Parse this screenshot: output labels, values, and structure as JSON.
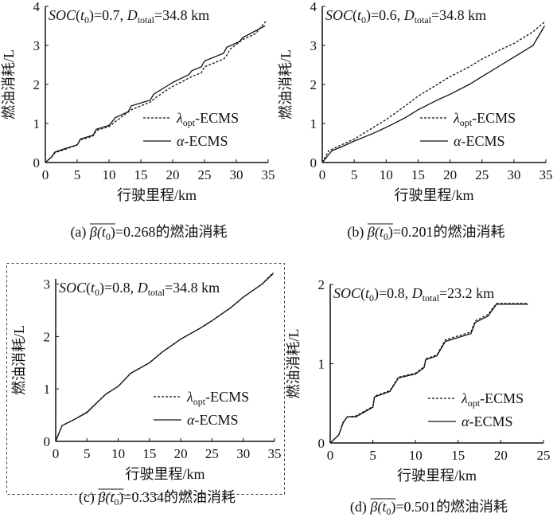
{
  "chart_data": [
    {
      "type": "line",
      "panel": "a",
      "xlabel": "行驶里程/km",
      "ylabel": "燃油消耗/L",
      "xlim": [
        0,
        35
      ],
      "ylim": [
        0,
        4
      ],
      "xticks": [
        "0",
        "5",
        "10",
        "15",
        "20",
        "25",
        "30",
        "35"
      ],
      "yticks": [
        "0",
        "1",
        "2",
        "3",
        "4"
      ],
      "grid": false,
      "legend": "center-right",
      "annotation": [
        "SOC",
        "(",
        "t",
        "0",
        ")=0.7, ",
        "D",
        "total",
        "=34.8 km"
      ],
      "caption": {
        "label": "(a) ",
        "beta": "β(",
        "t": "t",
        "sub": "0",
        "close": ")",
        "value": "=0.268的燃油消耗"
      },
      "series": [
        {
          "name_parts": [
            "λ",
            "opt",
            "-ECMS"
          ],
          "style": "dashed",
          "x": [
            0,
            1,
            1.5,
            3,
            5,
            5.5,
            7.5,
            8,
            10,
            11,
            13.5,
            16.5,
            17,
            19,
            20,
            23,
            24.5,
            25,
            28,
            28.5,
            29,
            31,
            33,
            34.8
          ],
          "y": [
            0,
            0.14,
            0.25,
            0.33,
            0.45,
            0.58,
            0.68,
            0.82,
            0.92,
            1.05,
            1.35,
            1.55,
            1.62,
            1.85,
            1.95,
            2.2,
            2.3,
            2.45,
            2.65,
            2.75,
            2.9,
            3.15,
            3.3,
            3.65
          ]
        },
        {
          "name_parts": [
            "α",
            "-ECMS"
          ],
          "style": "solid",
          "x": [
            0,
            1,
            1.5,
            3,
            5,
            5.5,
            7.5,
            8,
            10,
            11,
            13,
            13.5,
            16.5,
            17,
            19,
            20,
            22.5,
            23,
            24.5,
            25,
            28,
            28.5,
            30.5,
            31,
            34.5
          ],
          "y": [
            0,
            0.15,
            0.27,
            0.35,
            0.45,
            0.6,
            0.7,
            0.85,
            0.95,
            1.15,
            1.3,
            1.45,
            1.6,
            1.75,
            1.95,
            2.05,
            2.25,
            2.35,
            2.45,
            2.6,
            2.8,
            2.95,
            3.1,
            3.2,
            3.5
          ]
        }
      ]
    },
    {
      "type": "line",
      "panel": "b",
      "xlabel": "行驶里程/km",
      "ylabel": "燃油消耗/L",
      "xlim": [
        0,
        35
      ],
      "ylim": [
        0,
        4
      ],
      "xticks": [
        "0",
        "5",
        "10",
        "15",
        "20",
        "25",
        "30",
        "35"
      ],
      "yticks": [
        "0",
        "1",
        "2",
        "3",
        "4"
      ],
      "grid": false,
      "legend": "center-right",
      "annotation": [
        "SOC",
        "(",
        "t",
        "0",
        ")=0.6, ",
        "D",
        "total",
        "=34.8 km"
      ],
      "caption": {
        "label": "(b) ",
        "beta": "β(",
        "t": "t",
        "sub": "0",
        "close": ")",
        "value": "=0.201的燃油消耗"
      },
      "series": [
        {
          "name_parts": [
            "λ",
            "opt",
            "-ECMS"
          ],
          "style": "dashed",
          "x": [
            0,
            1,
            3,
            5,
            8,
            10,
            13,
            15,
            18,
            20,
            23,
            25,
            28,
            30,
            33,
            34.8
          ],
          "y": [
            0,
            0.3,
            0.45,
            0.6,
            0.9,
            1.1,
            1.45,
            1.7,
            2.0,
            2.2,
            2.45,
            2.65,
            2.9,
            3.05,
            3.35,
            3.6
          ]
        },
        {
          "name_parts": [
            "α",
            "-ECMS"
          ],
          "style": "solid",
          "x": [
            0,
            1.5,
            3,
            5,
            8,
            10,
            13,
            15,
            18,
            20,
            23,
            25,
            28,
            30,
            33,
            34.8
          ],
          "y": [
            0,
            0.3,
            0.4,
            0.55,
            0.75,
            0.9,
            1.15,
            1.35,
            1.6,
            1.75,
            2.0,
            2.2,
            2.5,
            2.7,
            3.0,
            3.5
          ]
        }
      ]
    },
    {
      "type": "line",
      "panel": "c",
      "xlabel": "行驶里程/km",
      "ylabel": "燃油消耗/L",
      "xlim": [
        0,
        35
      ],
      "ylim": [
        0,
        3.1
      ],
      "xticks": [
        "0",
        "5",
        "10",
        "15",
        "20",
        "25",
        "30",
        "35"
      ],
      "yticks": [
        "0",
        "1",
        "2",
        "3"
      ],
      "grid": false,
      "legend": "center-right",
      "annotation": [
        "SOC",
        "(",
        "t",
        "0",
        ")=0.8, ",
        "D",
        "total",
        "=34.8 km"
      ],
      "caption": {
        "label": "(c) ",
        "beta": "β(",
        "t": "t",
        "sub": "0",
        "close": ")",
        "value": "=0.334的燃油消耗"
      },
      "series": [
        {
          "name_parts": [
            "λ",
            "opt",
            "-ECMS"
          ],
          "style": "dashed",
          "x": [
            0,
            1,
            3,
            5,
            8,
            10,
            12,
            15,
            17,
            20,
            23,
            25,
            28,
            30,
            33,
            34.8
          ],
          "y": [
            0,
            0.3,
            0.42,
            0.56,
            0.9,
            1.05,
            1.3,
            1.5,
            1.7,
            1.95,
            2.15,
            2.3,
            2.55,
            2.75,
            3.0,
            3.22
          ]
        },
        {
          "name_parts": [
            "α",
            "-ECMS"
          ],
          "style": "solid",
          "x": [
            0,
            1,
            3,
            5,
            8,
            10,
            12,
            15,
            17,
            20,
            23,
            25,
            28,
            30,
            33,
            34.8
          ],
          "y": [
            0,
            0.3,
            0.42,
            0.55,
            0.9,
            1.05,
            1.3,
            1.5,
            1.7,
            1.95,
            2.15,
            2.3,
            2.55,
            2.75,
            3.0,
            3.2
          ]
        }
      ]
    },
    {
      "type": "line",
      "panel": "d",
      "xlabel": "行驶里程/km",
      "ylabel": "燃油消耗/L",
      "xlim": [
        0,
        25
      ],
      "ylim": [
        0,
        2
      ],
      "xticks": [
        "0",
        "5",
        "10",
        "15",
        "20",
        "25"
      ],
      "yticks": [
        "0",
        "1",
        "2"
      ],
      "grid": false,
      "legend": "center-right",
      "annotation": [
        "SOC",
        "(",
        "t",
        "0",
        ")=0.8, ",
        "D",
        "total",
        "=23.2 km"
      ],
      "caption": {
        "label": "(d) ",
        "beta": "β(",
        "t": "t",
        "sub": "0",
        "close": ")",
        "value": "=0.501的燃油消耗"
      },
      "series": [
        {
          "name_parts": [
            "λ",
            "opt",
            "-ECMS"
          ],
          "style": "dashed",
          "x": [
            0,
            1,
            1.5,
            2,
            3,
            5,
            5.2,
            7,
            8,
            10,
            11,
            11.2,
            12.5,
            13.5,
            16.5,
            17,
            18.5,
            19.5,
            23.2
          ],
          "y": [
            0,
            0.1,
            0.26,
            0.33,
            0.34,
            0.46,
            0.59,
            0.66,
            0.83,
            0.88,
            0.96,
            1.06,
            1.11,
            1.3,
            1.4,
            1.54,
            1.62,
            1.76,
            1.76
          ]
        },
        {
          "name_parts": [
            "α",
            "-ECMS"
          ],
          "style": "solid",
          "x": [
            0,
            1,
            1.5,
            2,
            3,
            5,
            5.2,
            7,
            8,
            10,
            11,
            11.2,
            12.5,
            13.5,
            16.5,
            17,
            18.5,
            19.5,
            23.2
          ],
          "y": [
            0,
            0.1,
            0.25,
            0.33,
            0.33,
            0.45,
            0.58,
            0.65,
            0.82,
            0.87,
            0.95,
            1.05,
            1.1,
            1.28,
            1.38,
            1.52,
            1.6,
            1.75,
            1.75
          ]
        }
      ]
    }
  ]
}
